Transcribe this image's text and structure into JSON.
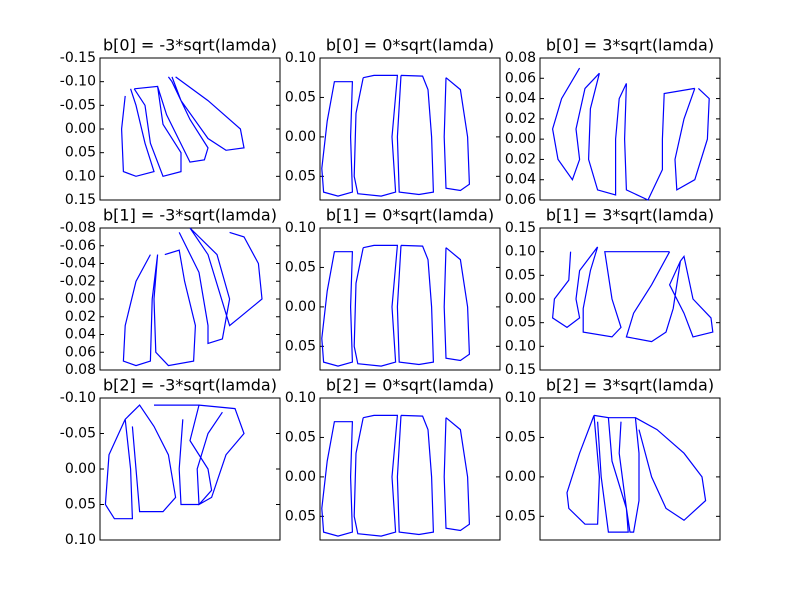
{
  "chart_data": [
    {
      "type": "line",
      "title": "b[0] = -3*sqrt(lamda)",
      "invert_y": true,
      "x": [
        14,
        12,
        13,
        20,
        30,
        25,
        20,
        17,
        null,
        19,
        25,
        28,
        35,
        45,
        45,
        35,
        32,
        19,
        null,
        32,
        37,
        50,
        58,
        60,
        50,
        40,
        38,
        null,
        40,
        45,
        60,
        70,
        80,
        78,
        60,
        42
      ],
      "series": [
        {
          "color": "#0000ff",
          "values": [
            -0.07,
            0,
            0.09,
            0.1,
            0.09,
            0.03,
            -0.05,
            -0.085,
            null,
            -0.085,
            -0.05,
            0.03,
            0.1,
            0.09,
            0.05,
            -0.01,
            -0.09,
            -0.085,
            null,
            -0.09,
            -0.03,
            0.07,
            0.065,
            0.04,
            -0.02,
            -0.1,
            -0.11,
            null,
            -0.11,
            -0.06,
            0.02,
            0.045,
            0.04,
            0,
            -0.06,
            -0.11
          ]
        }
      ],
      "xlim": [
        0,
        100
      ],
      "ylim": [
        -0.15,
        0.15
      ],
      "yticks": [
        -0.15,
        {
          "value": -0.1,
          "label": "-0.10"
        },
        -0.05,
        {
          "value": 0,
          "label": "0.00"
        },
        0.05,
        {
          "value": 0.1,
          "label": "0.10"
        },
        0.15
      ]
    },
    {
      "type": "line",
      "title": "b[0] = 0*sqrt(lamda)",
      "invert_y": true,
      "x": [
        12,
        8,
        4,
        1,
        2,
        10,
        18,
        17,
        18,
        12,
        null,
        24,
        20,
        19,
        21,
        34,
        42,
        40,
        43,
        30,
        24,
        null,
        45,
        43,
        44,
        55,
        63,
        62,
        60,
        57,
        45,
        null,
        70,
        69,
        70,
        78,
        83,
        82,
        78,
        70
      ],
      "series": [
        {
          "color": "#0000ff",
          "values": [
            -0.07,
            -0.07,
            -0.02,
            0.04,
            0.07,
            0.075,
            0.07,
            0,
            -0.07,
            -0.07,
            null,
            -0.075,
            -0.03,
            0.05,
            0.072,
            0.075,
            0.07,
            0,
            -0.078,
            -0.078,
            -0.075,
            null,
            -0.078,
            0,
            0.07,
            0.073,
            0.07,
            0,
            -0.06,
            -0.077,
            -0.078,
            null,
            -0.075,
            0,
            0.065,
            0.068,
            0.06,
            0,
            -0.06,
            -0.075
          ]
        }
      ],
      "xlim": [
        0,
        100
      ],
      "ylim": [
        -0.1,
        0.08
      ],
      "yticks": [
        {
          "value": -0.1,
          "label": "0.10"
        },
        {
          "value": -0.05,
          "label": "0.05"
        },
        {
          "value": 0,
          "label": "0.00"
        },
        0.05
      ]
    },
    {
      "type": "line",
      "title": "b[0] = 3*sqrt(lamda)",
      "invert_y": true,
      "x": [
        22,
        12,
        7,
        10,
        18,
        22,
        20,
        25,
        33,
        null,
        33,
        28,
        27,
        32,
        42,
        42,
        44,
        48,
        null,
        48,
        47,
        48,
        60,
        68,
        68,
        69,
        86,
        null,
        86,
        80,
        75,
        76,
        86,
        93,
        94,
        88
      ],
      "series": [
        {
          "color": "#0000ff",
          "values": [
            -0.07,
            -0.04,
            -0.01,
            0.02,
            0.04,
            0.02,
            -0.01,
            -0.05,
            -0.065,
            null,
            -0.065,
            -0.03,
            0.02,
            0.05,
            0.055,
            0,
            -0.04,
            -0.055,
            null,
            -0.055,
            0,
            0.05,
            0.06,
            0.03,
            0,
            -0.045,
            -0.05,
            null,
            -0.05,
            -0.02,
            0.02,
            0.05,
            0.04,
            0,
            -0.04,
            -0.05
          ]
        }
      ],
      "xlim": [
        0,
        100
      ],
      "ylim": [
        -0.08,
        0.06
      ],
      "yticks": [
        {
          "value": -0.08,
          "label": "0.08"
        },
        {
          "value": -0.06,
          "label": "0.06"
        },
        {
          "value": -0.04,
          "label": "0.04"
        },
        {
          "value": -0.02,
          "label": "0.02"
        },
        {
          "value": 0,
          "label": "0.00"
        },
        0.02,
        0.04,
        0.06
      ]
    },
    {
      "type": "line",
      "title": "b[1] = -3*sqrt(lamda)",
      "invert_y": true,
      "x": [
        28,
        20,
        14,
        13,
        20,
        28,
        29,
        32,
        null,
        32,
        30,
        31,
        38,
        52,
        53,
        47,
        44,
        36,
        null,
        44,
        55,
        60,
        60,
        68,
        72,
        65,
        50,
        null,
        50,
        60,
        72,
        78,
        90,
        88,
        80,
        72
      ],
      "series": [
        {
          "color": "#0000ff",
          "values": [
            -0.05,
            -0.02,
            0.03,
            0.07,
            0.075,
            0.07,
            0,
            -0.05,
            null,
            -0.05,
            0,
            0.06,
            0.075,
            0.07,
            0.03,
            -0.02,
            -0.055,
            -0.05,
            null,
            -0.075,
            -0.03,
            0.03,
            0.05,
            0.045,
            0,
            -0.05,
            -0.08,
            null,
            -0.08,
            -0.05,
            0.03,
            0.02,
            0,
            -0.04,
            -0.07,
            -0.075
          ]
        }
      ],
      "xlim": [
        0,
        100
      ],
      "ylim": [
        -0.08,
        0.08
      ],
      "yticks": [
        -0.08,
        -0.06,
        -0.04,
        -0.02,
        {
          "value": 0,
          "label": "0.00"
        },
        0.02,
        0.04,
        0.06,
        0.08
      ]
    },
    {
      "type": "line",
      "title": "b[1] = 0*sqrt(lamda)",
      "invert_y": true,
      "x": [
        12,
        8,
        4,
        1,
        2,
        10,
        18,
        17,
        18,
        12,
        null,
        24,
        20,
        19,
        21,
        34,
        42,
        40,
        43,
        30,
        24,
        null,
        45,
        43,
        44,
        55,
        63,
        62,
        60,
        57,
        45,
        null,
        70,
        69,
        70,
        78,
        83,
        82,
        78,
        70
      ],
      "series": [
        {
          "color": "#0000ff",
          "values": [
            -0.07,
            -0.07,
            -0.02,
            0.04,
            0.07,
            0.075,
            0.07,
            0,
            -0.07,
            -0.07,
            null,
            -0.075,
            -0.03,
            0.05,
            0.072,
            0.075,
            0.07,
            0,
            -0.078,
            -0.078,
            -0.075,
            null,
            -0.078,
            0,
            0.07,
            0.073,
            0.07,
            0,
            -0.06,
            -0.077,
            -0.078,
            null,
            -0.075,
            0,
            0.065,
            0.068,
            0.06,
            0,
            -0.06,
            -0.075
          ]
        }
      ],
      "xlim": [
        0,
        100
      ],
      "ylim": [
        -0.1,
        0.08
      ],
      "yticks": [
        {
          "value": -0.1,
          "label": "0.10"
        },
        {
          "value": -0.05,
          "label": "0.05"
        },
        {
          "value": 0,
          "label": "0.00"
        },
        0.05
      ]
    },
    {
      "type": "line",
      "title": "b[1] = 3*sqrt(lamda)",
      "invert_y": true,
      "x": [
        17,
        16,
        8,
        7,
        15,
        22,
        20,
        22,
        32,
        null,
        32,
        28,
        24,
        24,
        40,
        45,
        40,
        36,
        72,
        null,
        72,
        62,
        52,
        48,
        62,
        70,
        74,
        78,
        null,
        78,
        72,
        80,
        85,
        96,
        95,
        85,
        80,
        78
      ],
      "series": [
        {
          "color": "#0000ff",
          "values": [
            -0.1,
            -0.04,
            0,
            0.04,
            0.06,
            0.04,
            0,
            -0.06,
            -0.11,
            null,
            -0.11,
            -0.06,
            0.02,
            0.07,
            0.08,
            0.06,
            0,
            -0.1,
            -0.1,
            null,
            -0.1,
            -0.03,
            0.03,
            0.08,
            0.09,
            0.07,
            0.02,
            -0.08,
            null,
            -0.08,
            -0.03,
            0.03,
            0.08,
            0.07,
            0.04,
            0,
            -0.09,
            -0.08
          ]
        }
      ],
      "xlim": [
        0,
        100
      ],
      "ylim": [
        -0.15,
        0.15
      ],
      "yticks": [
        {
          "value": -0.15,
          "label": "0.15"
        },
        {
          "value": -0.1,
          "label": "0.10"
        },
        {
          "value": -0.05,
          "label": "0.05"
        },
        {
          "value": 0,
          "label": "0.00"
        },
        0.05,
        {
          "value": 0.1,
          "label": "0.10"
        },
        0.15
      ]
    },
    {
      "type": "line",
      "title": "b[2] = -3*sqrt(lamda)",
      "invert_y": true,
      "x": [
        14,
        5,
        3,
        8,
        18,
        17,
        14,
        null,
        14,
        22,
        30,
        38,
        42,
        35,
        22,
        20,
        18,
        null,
        30,
        55,
        50,
        60,
        62,
        55,
        45,
        44,
        46,
        null,
        55,
        75,
        80,
        70,
        62,
        55,
        54,
        60,
        68
      ],
      "series": [
        {
          "color": "#0000ff",
          "values": [
            -0.07,
            -0.02,
            0.05,
            0.07,
            0.07,
            0,
            -0.07,
            null,
            -0.07,
            -0.09,
            -0.06,
            -0.02,
            0.04,
            0.06,
            0.06,
            0,
            -0.06,
            null,
            -0.09,
            -0.09,
            -0.04,
            0,
            0.03,
            0.05,
            0.05,
            0,
            -0.07,
            null,
            -0.09,
            -0.085,
            -0.05,
            -0.02,
            0.04,
            0.05,
            0,
            -0.05,
            -0.08
          ]
        }
      ],
      "xlim": [
        0,
        100
      ],
      "ylim": [
        -0.1,
        0.1
      ],
      "yticks": [
        {
          "value": -0.1,
          "label": "-0.10"
        },
        -0.05,
        {
          "value": 0,
          "label": "0.00"
        },
        0.05,
        {
          "value": 0.1,
          "label": "0.10"
        }
      ]
    },
    {
      "type": "line",
      "title": "b[2] = 0*sqrt(lamda)",
      "invert_y": true,
      "x": [
        12,
        8,
        4,
        1,
        2,
        10,
        18,
        17,
        18,
        12,
        null,
        24,
        20,
        19,
        21,
        34,
        42,
        40,
        43,
        30,
        24,
        null,
        45,
        43,
        44,
        55,
        63,
        62,
        60,
        57,
        45,
        null,
        70,
        69,
        70,
        78,
        83,
        82,
        78,
        70
      ],
      "series": [
        {
          "color": "#0000ff",
          "values": [
            -0.07,
            -0.07,
            -0.02,
            0.04,
            0.07,
            0.075,
            0.07,
            0,
            -0.07,
            -0.07,
            null,
            -0.075,
            -0.03,
            0.05,
            0.072,
            0.075,
            0.07,
            0,
            -0.078,
            -0.078,
            -0.075,
            null,
            -0.078,
            0,
            0.07,
            0.073,
            0.07,
            0,
            -0.06,
            -0.077,
            -0.078,
            null,
            -0.075,
            0,
            0.065,
            0.068,
            0.06,
            0,
            -0.06,
            -0.075
          ]
        }
      ],
      "xlim": [
        0,
        100
      ],
      "ylim": [
        -0.1,
        0.08
      ],
      "yticks": [
        {
          "value": -0.1,
          "label": "0.10"
        },
        {
          "value": -0.05,
          "label": "0.05"
        },
        {
          "value": 0,
          "label": "0.00"
        },
        0.05
      ]
    },
    {
      "type": "line",
      "title": "b[2] = 3*sqrt(lamda)",
      "invert_y": true,
      "x": [
        30,
        22,
        15,
        16,
        25,
        32,
        33,
        30,
        null,
        30,
        38,
        40,
        48,
        49,
        38,
        34,
        32,
        null,
        38,
        53,
        55,
        55,
        52,
        50,
        48,
        44,
        45,
        null,
        53,
        65,
        80,
        90,
        92,
        80,
        70,
        62,
        55
      ],
      "series": [
        {
          "color": "#0000ff",
          "values": [
            -0.078,
            -0.03,
            0.02,
            0.04,
            0.06,
            0.06,
            0,
            -0.078,
            null,
            -0.078,
            -0.075,
            -0.02,
            0.04,
            0.07,
            0.07,
            0,
            -0.07,
            null,
            -0.075,
            -0.075,
            -0.03,
            0.03,
            0.07,
            0.07,
            0.04,
            -0.03,
            -0.07,
            null,
            -0.075,
            -0.06,
            -0.03,
            0,
            0.03,
            0.055,
            0.04,
            0,
            -0.06
          ]
        }
      ],
      "xlim": [
        0,
        100
      ],
      "ylim": [
        -0.1,
        0.08
      ],
      "yticks": [
        {
          "value": -0.1,
          "label": "0.10"
        },
        {
          "value": -0.05,
          "label": "0.05"
        },
        {
          "value": 0,
          "label": "0.00"
        },
        0.05
      ]
    }
  ]
}
